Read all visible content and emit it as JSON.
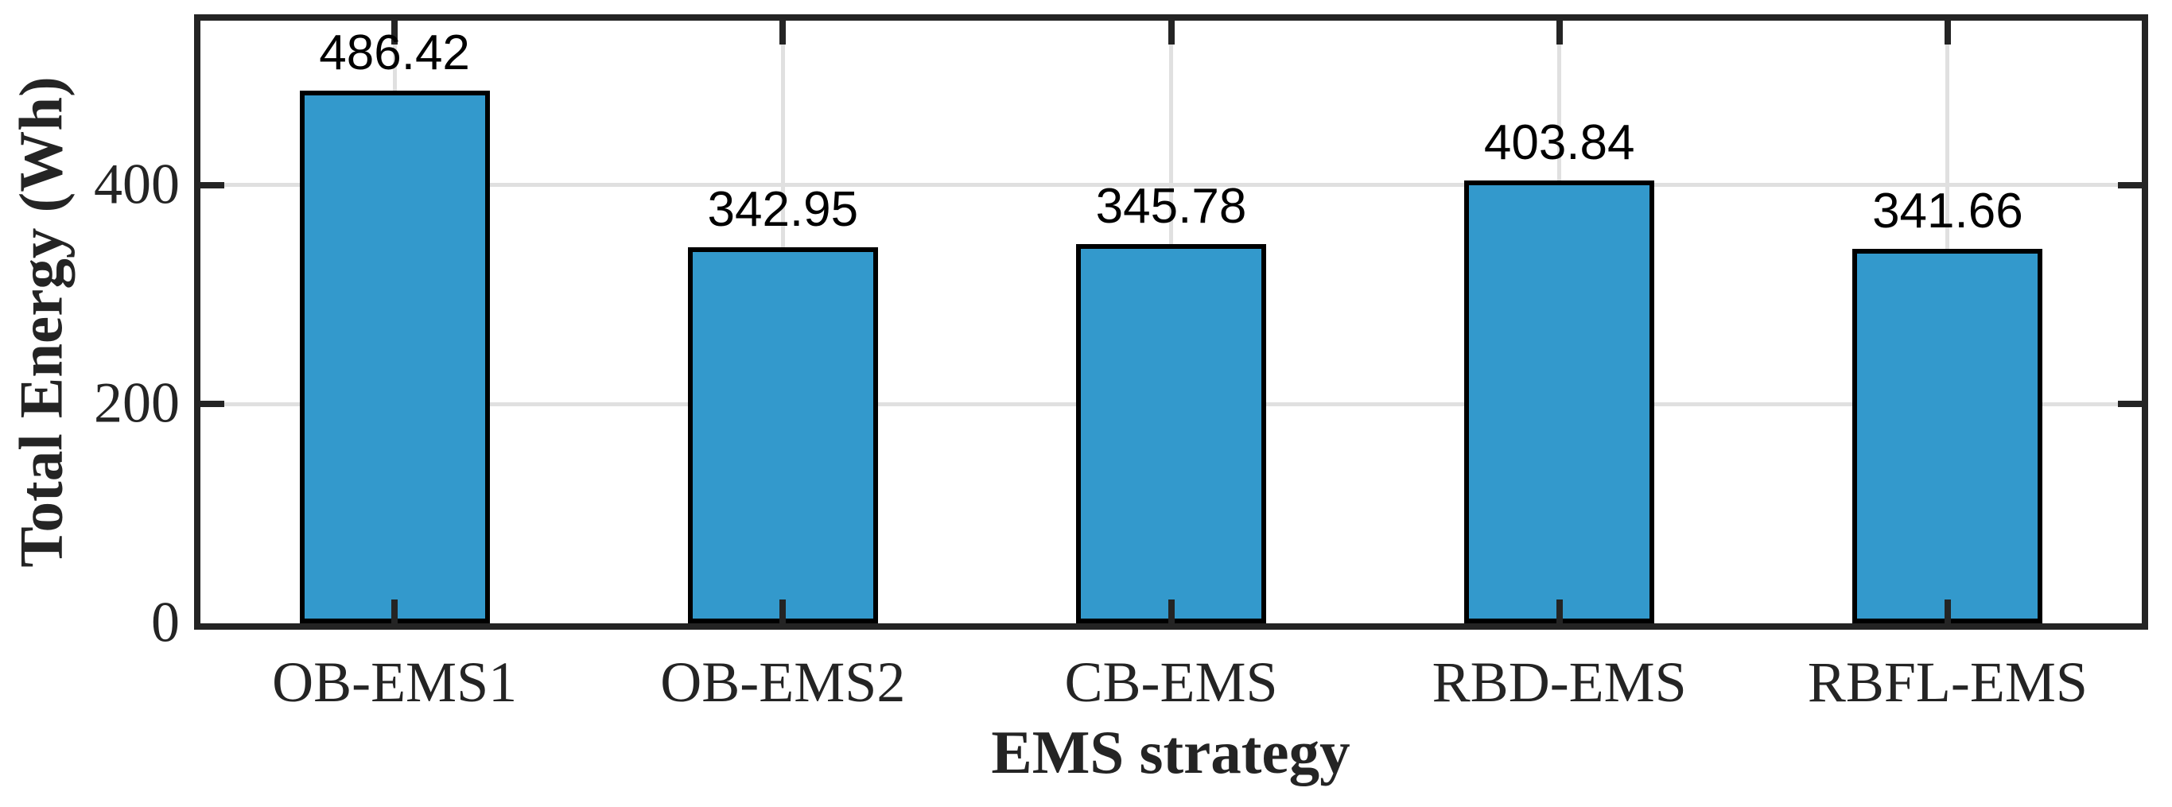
{
  "chart_data": {
    "type": "bar",
    "title": "",
    "xlabel": "EMS strategy",
    "ylabel": "Total Energy (Wh)",
    "categories": [
      "OB-EMS1",
      "OB-EMS2",
      "CB-EMS",
      "RBD-EMS",
      "RBFL-EMS"
    ],
    "values": [
      486.42,
      342.95,
      345.78,
      403.84,
      341.66
    ],
    "value_labels": [
      "486.42",
      "342.95",
      "345.78",
      "403.84",
      "341.66"
    ],
    "ytick_values": [
      0,
      200,
      400
    ],
    "ytick_labels": [
      "0",
      "200",
      "400"
    ],
    "ylim": [
      0,
      550
    ],
    "grid": true,
    "legend": "none",
    "bar_width_fraction": 0.49,
    "colors": {
      "bar_fill": "#3399cc",
      "bar_edge": "#000000",
      "axis": "#242424",
      "grid": "#e0e0e0",
      "text": "#000000"
    }
  }
}
